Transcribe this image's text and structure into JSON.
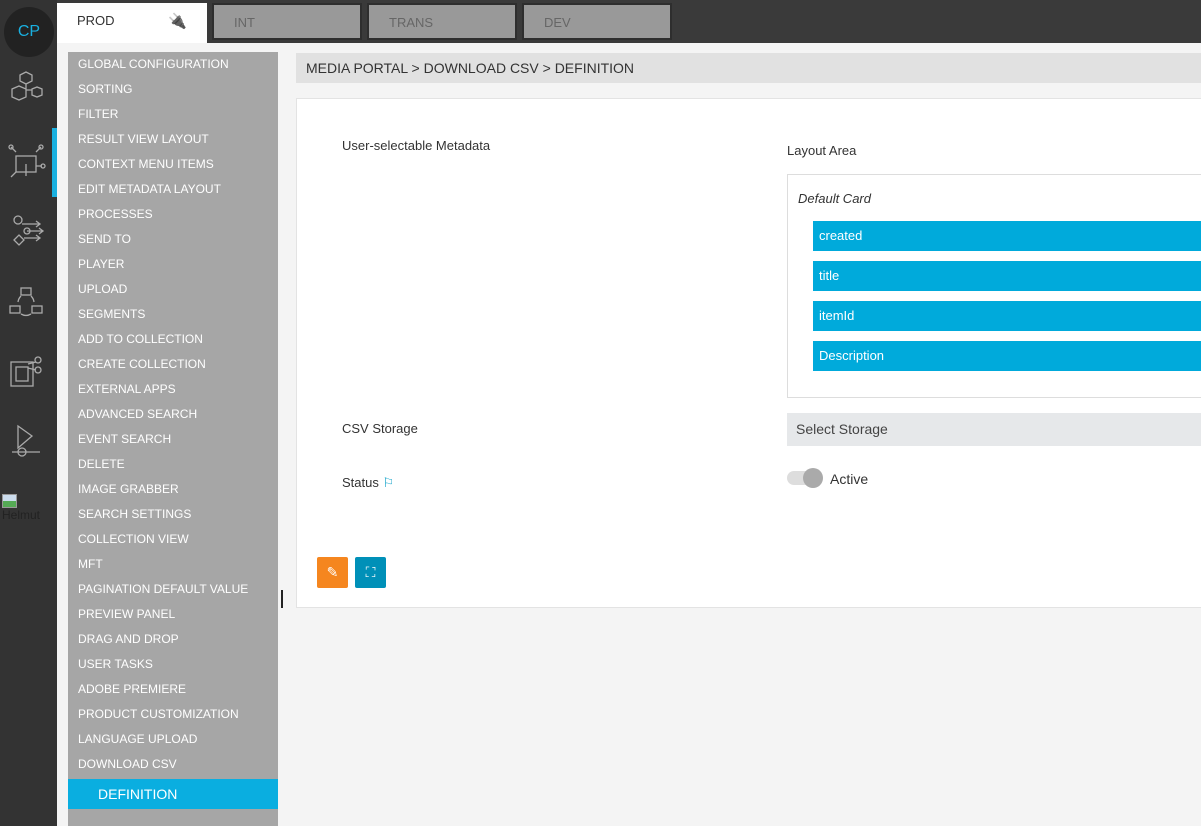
{
  "rail": {
    "avatar": "CP",
    "user": "Helmut",
    "icons": [
      "modules-icon",
      "integration-icon",
      "workflow-icon",
      "cycle-icon",
      "media-edit-icon",
      "player-icon"
    ]
  },
  "tabs": [
    {
      "label": "PROD",
      "active": true
    },
    {
      "label": "INT"
    },
    {
      "label": "TRANS"
    },
    {
      "label": "DEV"
    }
  ],
  "menu": {
    "items": [
      "GLOBAL CONFIGURATION",
      "SORTING",
      "FILTER",
      "RESULT VIEW LAYOUT",
      "CONTEXT MENU ITEMS",
      "EDIT METADATA LAYOUT",
      "PROCESSES",
      "SEND TO",
      "PLAYER",
      "UPLOAD",
      "SEGMENTS",
      "ADD TO COLLECTION",
      "CREATE COLLECTION",
      "EXTERNAL APPS",
      "ADVANCED SEARCH",
      "EVENT SEARCH",
      "DELETE",
      "IMAGE GRABBER",
      "SEARCH SETTINGS",
      "COLLECTION VIEW",
      "MFT",
      "PAGINATION DEFAULT VALUE",
      "PREVIEW PANEL",
      "DRAG AND DROP",
      "USER TASKS",
      "ADOBE PREMIERE",
      "PRODUCT CUSTOMIZATION",
      "LANGUAGE UPLOAD",
      "DOWNLOAD CSV"
    ],
    "active": "DEFINITION"
  },
  "breadcrumb": "MEDIA PORTAL > DOWNLOAD CSV > DEFINITION",
  "form": {
    "metadata_label": "User-selectable Metadata",
    "layout_area_label": "Layout Area",
    "card_title": "Default Card",
    "fields": [
      "created",
      "title",
      "itemId",
      "Description"
    ],
    "storage_label": "CSV Storage",
    "storage_placeholder": "Select Storage",
    "status_label": "Status",
    "status_value": "Active",
    "status_active": true
  },
  "colors": {
    "accent": "#00aadb",
    "edit": "#f5861f",
    "view": "#0090b8"
  }
}
